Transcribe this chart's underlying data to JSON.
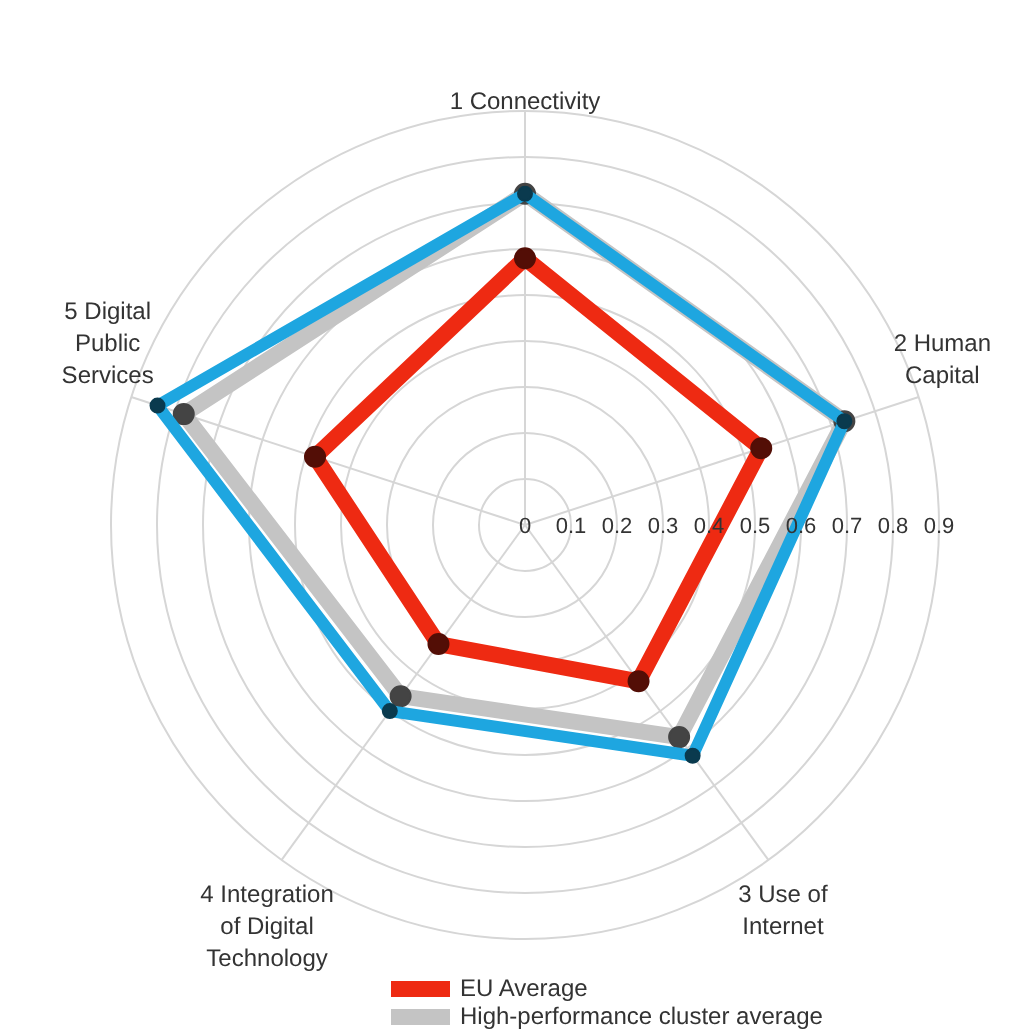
{
  "chart_data": {
    "type": "radar",
    "categories": [
      "1 Connectivity",
      "2 Human\nCapital",
      "3 Use of\nInternet",
      "4 Integration\nof Digital\nTechnology",
      "5 Digital\nPublic\nServices"
    ],
    "series": [
      {
        "name": "EU Average",
        "color": "#ee2a12",
        "values": [
          0.58,
          0.54,
          0.42,
          0.32,
          0.48
        ]
      },
      {
        "name": "High-performance cluster average",
        "color": "#c4c4c4",
        "values": [
          0.72,
          0.73,
          0.57,
          0.46,
          0.78
        ]
      },
      {
        "color": "#1ea6e0",
        "values": [
          0.72,
          0.73,
          0.62,
          0.5,
          0.84
        ]
      }
    ],
    "ylim": [
      0,
      0.9
    ],
    "yticks": [
      0,
      0.1,
      0.2,
      0.3,
      0.4,
      0.5,
      0.6,
      0.7,
      0.8,
      0.9
    ],
    "grid": true,
    "legend": "bottom",
    "marker": "circle",
    "line_style": "solid"
  }
}
